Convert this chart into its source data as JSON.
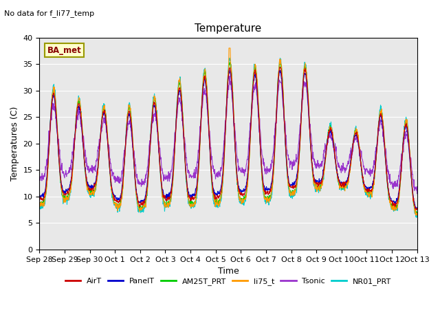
{
  "title": "Temperature",
  "ylabel": "Temperatures (C)",
  "xlabel": "Time",
  "annotation_text": "No data for f_li77_temp",
  "legend_label_text": "BA_met",
  "ylim": [
    0,
    40
  ],
  "series": [
    "AirT",
    "PanelT",
    "AM25T_PRT",
    "li75_t",
    "Tsonic",
    "NR01_PRT"
  ],
  "colors": {
    "AirT": "#cc0000",
    "PanelT": "#0000cc",
    "AM25T_PRT": "#00cc00",
    "li75_t": "#ff9900",
    "Tsonic": "#9933cc",
    "NR01_PRT": "#00cccc"
  },
  "x_tick_labels": [
    "Sep 28",
    "Sep 29",
    "Sep 30",
    "Oct 1",
    "Oct 2",
    "Oct 3",
    "Oct 4",
    "Oct 5",
    "Oct 6",
    "Oct 7",
    "Oct 8",
    "Oct 9",
    "Oct 10",
    "Oct 11",
    "Oct 12",
    "Oct 13"
  ],
  "plot_bg_color": "#e8e8e8",
  "fig_size": [
    6.4,
    4.8
  ],
  "dpi": 100
}
